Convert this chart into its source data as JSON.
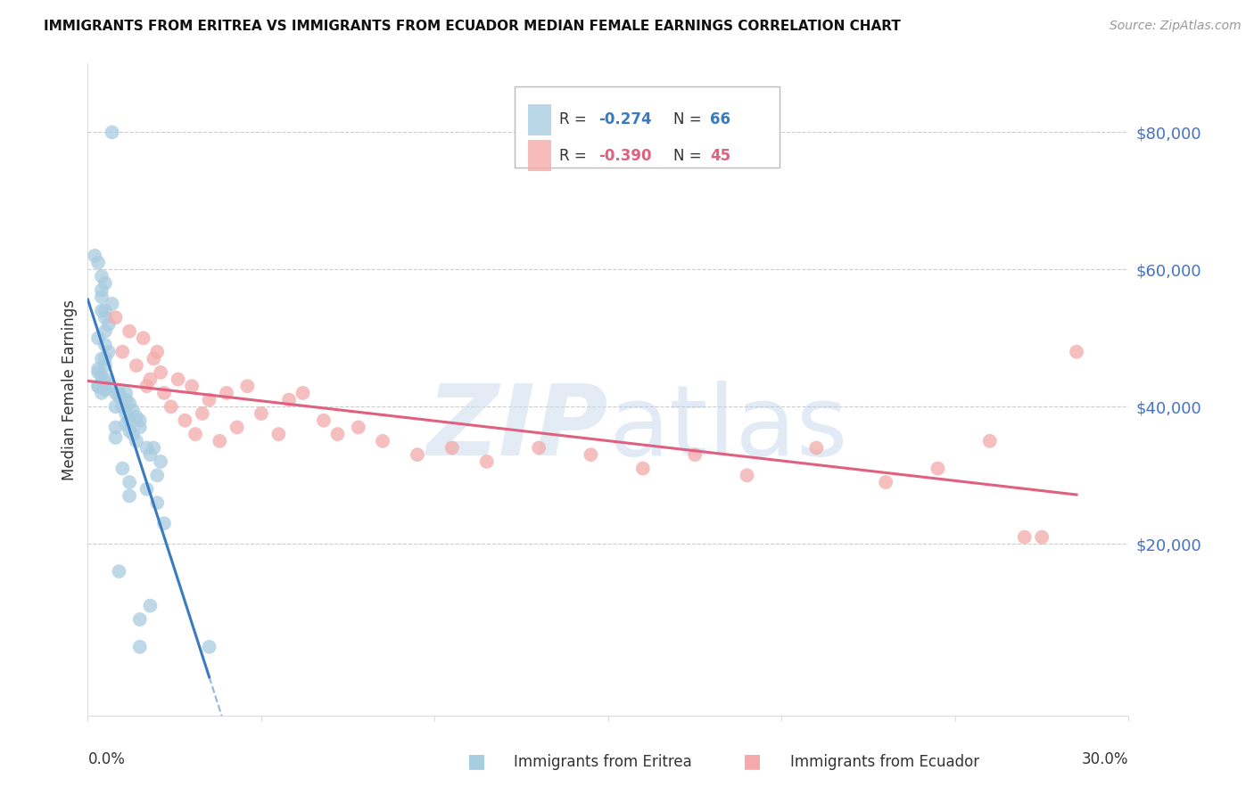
{
  "title": "IMMIGRANTS FROM ERITREA VS IMMIGRANTS FROM ECUADOR MEDIAN FEMALE EARNINGS CORRELATION CHART",
  "source": "Source: ZipAtlas.com",
  "ylabel": "Median Female Earnings",
  "ytick_values": [
    80000,
    60000,
    40000,
    20000
  ],
  "ylim": [
    -5000,
    90000
  ],
  "xlim": [
    0.0,
    0.3
  ],
  "legend_label_eritrea": "Immigrants from Eritrea",
  "legend_label_ecuador": "Immigrants from Ecuador",
  "color_eritrea": "#a8cce0",
  "color_ecuador": "#f4aaaa",
  "color_eritrea_line": "#3a7abf",
  "color_ecuador_line": "#e06080",
  "color_axis_labels": "#4472c4",
  "eritrea_x": [
    0.007,
    0.002,
    0.003,
    0.004,
    0.005,
    0.004,
    0.004,
    0.007,
    0.004,
    0.005,
    0.005,
    0.006,
    0.005,
    0.003,
    0.005,
    0.006,
    0.005,
    0.004,
    0.005,
    0.003,
    0.003,
    0.004,
    0.005,
    0.005,
    0.003,
    0.006,
    0.003,
    0.005,
    0.005,
    0.004,
    0.008,
    0.009,
    0.011,
    0.009,
    0.011,
    0.012,
    0.01,
    0.008,
    0.013,
    0.011,
    0.014,
    0.012,
    0.015,
    0.011,
    0.008,
    0.015,
    0.012,
    0.013,
    0.008,
    0.014,
    0.017,
    0.019,
    0.018,
    0.021,
    0.01,
    0.02,
    0.012,
    0.017,
    0.012,
    0.02,
    0.018,
    0.015,
    0.009,
    0.015,
    0.035,
    0.022
  ],
  "eritrea_y": [
    80000,
    62000,
    61000,
    59000,
    58000,
    57000,
    56000,
    55000,
    54000,
    54000,
    53000,
    52000,
    51000,
    50000,
    49000,
    48000,
    47000,
    47000,
    46000,
    45500,
    45000,
    44500,
    44000,
    43500,
    43000,
    43000,
    43000,
    42500,
    42500,
    42000,
    42000,
    42000,
    42000,
    41500,
    41000,
    40500,
    40000,
    40000,
    39500,
    39000,
    38500,
    38000,
    38000,
    37500,
    37000,
    37000,
    36500,
    36000,
    35500,
    35000,
    34000,
    34000,
    33000,
    32000,
    31000,
    30000,
    29000,
    28000,
    27000,
    26000,
    11000,
    9000,
    16000,
    5000,
    5000,
    23000
  ],
  "ecuador_x": [
    0.01,
    0.008,
    0.012,
    0.014,
    0.016,
    0.018,
    0.02,
    0.017,
    0.019,
    0.022,
    0.021,
    0.024,
    0.026,
    0.028,
    0.03,
    0.033,
    0.031,
    0.035,
    0.038,
    0.04,
    0.043,
    0.046,
    0.05,
    0.055,
    0.058,
    0.062,
    0.068,
    0.072,
    0.078,
    0.085,
    0.095,
    0.105,
    0.115,
    0.13,
    0.145,
    0.16,
    0.175,
    0.19,
    0.21,
    0.23,
    0.245,
    0.26,
    0.275,
    0.285,
    0.27
  ],
  "ecuador_y": [
    48000,
    53000,
    51000,
    46000,
    50000,
    44000,
    48000,
    43000,
    47000,
    42000,
    45000,
    40000,
    44000,
    38000,
    43000,
    39000,
    36000,
    41000,
    35000,
    42000,
    37000,
    43000,
    39000,
    36000,
    41000,
    42000,
    38000,
    36000,
    37000,
    35000,
    33000,
    34000,
    32000,
    34000,
    33000,
    31000,
    33000,
    30000,
    34000,
    29000,
    31000,
    35000,
    21000,
    48000,
    21000
  ]
}
